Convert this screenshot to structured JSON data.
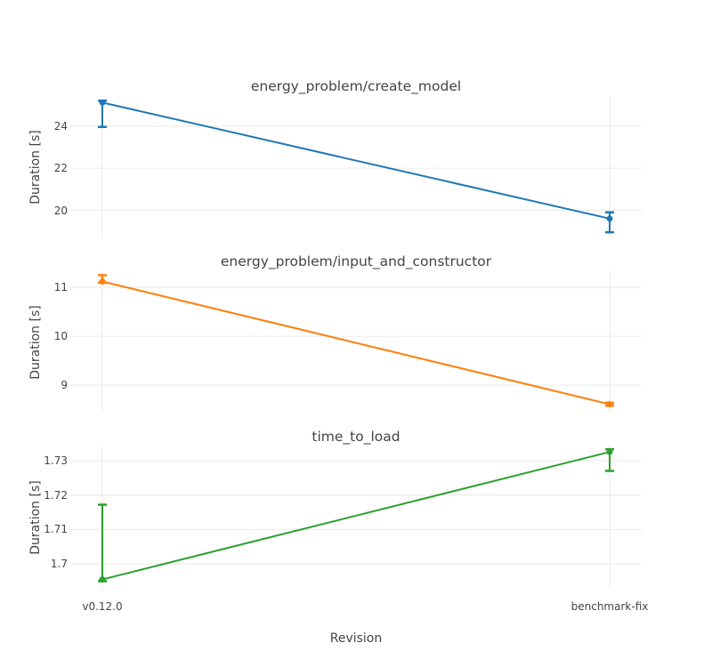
{
  "figure": {
    "background": "#ffffff",
    "grid_color": "#e9e9e9",
    "text_color": "#444444",
    "xlabel": "Revision",
    "ylabel": "Duration [s]",
    "categories": [
      "v0.12.0",
      "benchmark-fix"
    ]
  },
  "chart_data": [
    {
      "type": "line",
      "title": "energy_problem/create_model",
      "color": "#1f77b4",
      "x": [
        "v0.12.0",
        "benchmark-fix"
      ],
      "values": [
        25.13,
        19.6
      ],
      "error_high": [
        25.22,
        19.9
      ],
      "error_low": [
        23.97,
        18.95
      ],
      "ylabel": "Duration [s]",
      "ylim": [
        18.66,
        25.44
      ],
      "yticks": [
        20,
        22,
        24
      ],
      "ytick_labels": [
        "20",
        "22",
        "24"
      ],
      "grid": true,
      "legend": "none"
    },
    {
      "type": "line",
      "title": "energy_problem/input_and_constructor",
      "color": "#ff7f0e",
      "x": [
        "v0.12.0",
        "benchmark-fix"
      ],
      "values": [
        11.12,
        8.61
      ],
      "error_high": [
        11.25,
        8.64
      ],
      "error_low": [
        11.1,
        8.58
      ],
      "ylabel": "Duration [s]",
      "ylim": [
        8.42,
        11.33
      ],
      "yticks": [
        9,
        10,
        11
      ],
      "ytick_labels": [
        "9",
        "10",
        "11"
      ],
      "grid": true,
      "legend": "none"
    },
    {
      "type": "line",
      "title": "time_to_load",
      "color": "#2ca02c",
      "x": [
        "v0.12.0",
        "benchmark-fix"
      ],
      "values": [
        1.6955,
        1.7325
      ],
      "error_high": [
        1.7172,
        1.7333
      ],
      "error_low": [
        1.695,
        1.727
      ],
      "ylabel": "Duration [s]",
      "ylim": [
        1.6928,
        1.7341
      ],
      "yticks": [
        1.7,
        1.71,
        1.72,
        1.73
      ],
      "ytick_labels": [
        "1.7",
        "1.71",
        "1.72",
        "1.73"
      ],
      "grid": true,
      "legend": "none"
    }
  ]
}
